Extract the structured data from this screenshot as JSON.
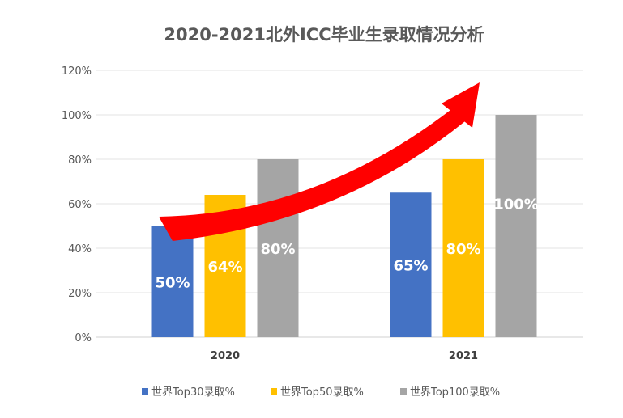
{
  "chart_data": {
    "type": "bar",
    "title": "2020-2021北外ICC毕业生录取情况分析",
    "categories": [
      "2020",
      "2021"
    ],
    "series": [
      {
        "name": "世界Top30录取%",
        "color": "#4472C4",
        "values": [
          50,
          65
        ],
        "labels": [
          "50%",
          "65%"
        ]
      },
      {
        "name": "世界Top50录取%",
        "color": "#FFC000",
        "values": [
          64,
          80
        ],
        "labels": [
          "64%",
          "80%"
        ]
      },
      {
        "name": "世界Top100录取%",
        "color": "#A5A5A5",
        "values": [
          80,
          100
        ],
        "labels": [
          "80%",
          "100%"
        ]
      }
    ],
    "yticks": [
      "0%",
      "20%",
      "40%",
      "60%",
      "80%",
      "100%",
      "120%"
    ],
    "ylim": [
      0,
      120
    ],
    "xlabel": "",
    "ylabel": "",
    "grid": true,
    "legend": "bottom",
    "annotation": "red upward trend arrow",
    "arrow_color": "#FF0000"
  }
}
